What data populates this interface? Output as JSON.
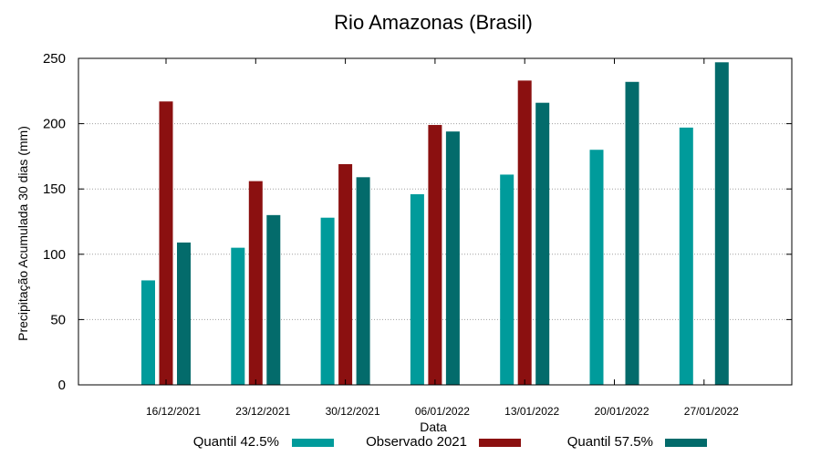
{
  "chart_data": {
    "type": "bar",
    "title": "Rio Amazonas (Brasil)",
    "xlabel": "Data",
    "ylabel": "Precipitação Acumulada 30 dias (mm)",
    "ylim": [
      0,
      250
    ],
    "yticks": [
      0,
      50,
      100,
      150,
      200,
      250
    ],
    "grid": true,
    "legend_position": "bottom",
    "categories": [
      "16/12/2021",
      "23/12/2021",
      "30/12/2021",
      "06/01/2022",
      "13/01/2022",
      "20/01/2022",
      "27/01/2022"
    ],
    "series": [
      {
        "name": "Quantil 42.5%",
        "color": "#009b9b",
        "values": [
          80,
          105,
          128,
          146,
          161,
          180,
          197
        ]
      },
      {
        "name": "Observado 2021",
        "color": "#8b1010",
        "values": [
          217,
          156,
          169,
          199,
          233,
          null,
          null
        ]
      },
      {
        "name": "Quantil 57.5%",
        "color": "#036b6b",
        "values": [
          109,
          130,
          159,
          194,
          216,
          232,
          247
        ]
      }
    ]
  }
}
